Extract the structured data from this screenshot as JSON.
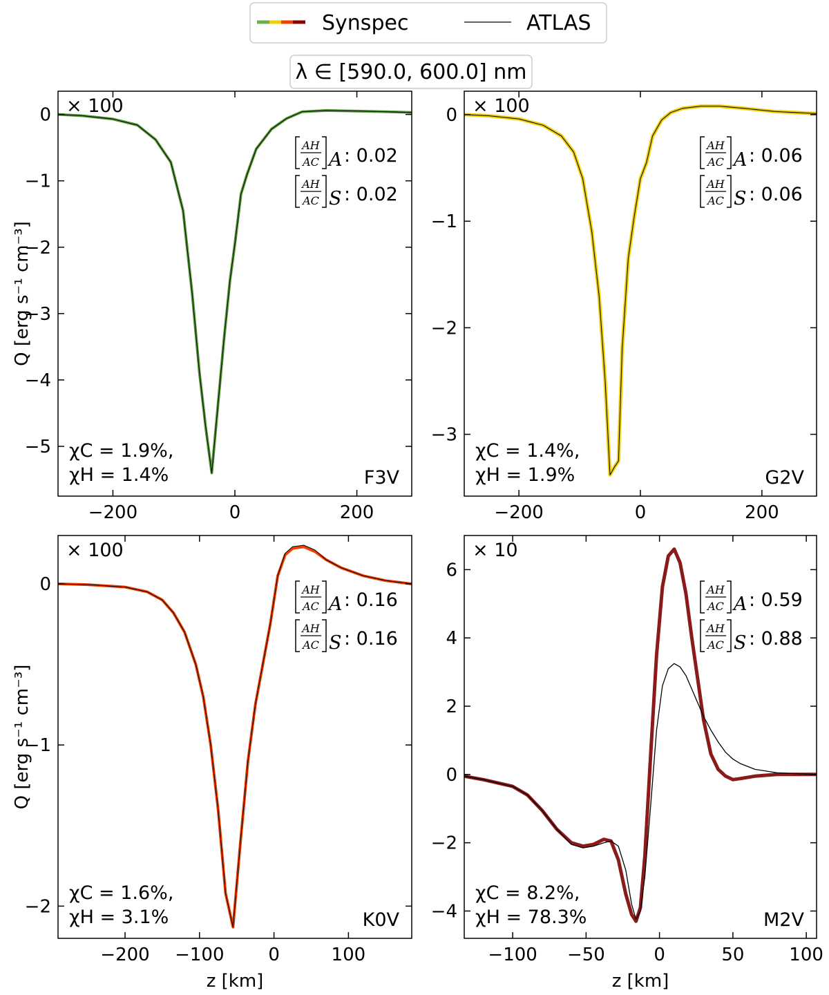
{
  "legend": {
    "synspec_label": "Synspec",
    "atlas_label": "ATLAS",
    "synspec_colors": [
      "#6ab04c",
      "#f0d000",
      "#f04000",
      "#8b0000"
    ],
    "atlas_color": "#000000"
  },
  "wavelength_box": "λ ∈ [590.0, 600.0] nm",
  "chart_data": [
    {
      "type": "line",
      "star": "F3V",
      "scale_label": "× 100",
      "xlabel": "",
      "ylabel": "Q [erg s⁻¹ cm⁻³]",
      "xlim": [
        -290,
        290
      ],
      "ylim": [
        -5.75,
        0.35
      ],
      "xticks": [
        -200,
        0,
        200
      ],
      "xtick_labels": [
        "−200",
        "0",
        "200"
      ],
      "yticks": [
        0,
        -1,
        -2,
        -3,
        -4,
        -5
      ],
      "ytick_labels": [
        "0",
        "−1",
        "−2",
        "−3",
        "−4",
        "−5"
      ],
      "ratio_A": "0.02",
      "ratio_S": "0.02",
      "chi_C": "χC = 1.9%,",
      "chi_H": "χH = 1.4%",
      "series": [
        {
          "name": "Synspec",
          "color": "#5a9e3c",
          "width": 4,
          "x": [
            -290,
            -250,
            -200,
            -160,
            -130,
            -105,
            -85,
            -70,
            -58,
            -48,
            -38,
            -28,
            -18,
            -8,
            0,
            10,
            20,
            35,
            60,
            85,
            110,
            150,
            200,
            250,
            290
          ],
          "y": [
            0.0,
            -0.02,
            -0.07,
            -0.16,
            -0.38,
            -0.72,
            -1.45,
            -2.7,
            -3.9,
            -4.7,
            -5.4,
            -4.4,
            -3.4,
            -2.5,
            -1.95,
            -1.2,
            -0.9,
            -0.52,
            -0.22,
            -0.06,
            0.04,
            0.06,
            0.05,
            0.04,
            0.03
          ]
        },
        {
          "name": "ATLAS",
          "color": "#000000",
          "width": 1,
          "x": [
            -290,
            -250,
            -200,
            -160,
            -130,
            -105,
            -85,
            -70,
            -58,
            -48,
            -38,
            -28,
            -18,
            -8,
            0,
            10,
            20,
            35,
            60,
            85,
            110,
            150,
            200,
            250,
            290
          ],
          "y": [
            0.0,
            -0.02,
            -0.07,
            -0.16,
            -0.38,
            -0.72,
            -1.45,
            -2.7,
            -3.9,
            -4.7,
            -5.4,
            -4.4,
            -3.4,
            -2.5,
            -1.95,
            -1.2,
            -0.9,
            -0.52,
            -0.22,
            -0.06,
            0.04,
            0.06,
            0.05,
            0.04,
            0.03
          ]
        }
      ]
    },
    {
      "type": "line",
      "star": "G2V",
      "scale_label": "× 100",
      "xlabel": "",
      "ylabel": "",
      "xlim": [
        -290,
        290
      ],
      "ylim": [
        -3.58,
        0.22
      ],
      "xticks": [
        -200,
        0,
        200
      ],
      "xtick_labels": [
        "−200",
        "0",
        "200"
      ],
      "yticks": [
        0,
        -1,
        -2,
        -3
      ],
      "ytick_labels": [
        "0",
        "−1",
        "−2",
        "−3"
      ],
      "ratio_A": "0.06",
      "ratio_S": "0.06",
      "chi_C": "χC = 1.4%,",
      "chi_H": "χH = 1.9%",
      "series": [
        {
          "name": "Synspec",
          "color": "#f0d000",
          "width": 5,
          "x": [
            -290,
            -250,
            -200,
            -160,
            -130,
            -110,
            -95,
            -80,
            -68,
            -58,
            -50,
            -42,
            -36,
            -30,
            -20,
            -10,
            0,
            10,
            20,
            35,
            50,
            70,
            100,
            130,
            170,
            220,
            290
          ],
          "y": [
            0.0,
            -0.01,
            -0.04,
            -0.1,
            -0.2,
            -0.35,
            -0.6,
            -1.1,
            -1.7,
            -2.5,
            -3.38,
            -3.3,
            -3.25,
            -2.2,
            -1.35,
            -0.95,
            -0.6,
            -0.45,
            -0.2,
            -0.05,
            0.02,
            0.06,
            0.08,
            0.08,
            0.06,
            0.03,
            0.01
          ]
        },
        {
          "name": "ATLAS",
          "color": "#000000",
          "width": 1,
          "x": [
            -290,
            -250,
            -200,
            -160,
            -130,
            -110,
            -95,
            -80,
            -68,
            -58,
            -50,
            -42,
            -36,
            -30,
            -20,
            -10,
            0,
            10,
            20,
            35,
            50,
            70,
            100,
            130,
            170,
            220,
            290
          ],
          "y": [
            0.0,
            -0.01,
            -0.04,
            -0.1,
            -0.2,
            -0.35,
            -0.6,
            -1.1,
            -1.7,
            -2.5,
            -3.38,
            -3.3,
            -3.25,
            -2.2,
            -1.35,
            -0.95,
            -0.6,
            -0.45,
            -0.2,
            -0.05,
            0.02,
            0.06,
            0.08,
            0.08,
            0.06,
            0.03,
            0.01
          ]
        }
      ]
    },
    {
      "type": "line",
      "star": "K0V",
      "scale_label": "× 100",
      "xlabel": "z [km]",
      "ylabel": "Q [erg s⁻¹ cm⁻³]",
      "xlim": [
        -290,
        185
      ],
      "ylim": [
        -2.2,
        0.3
      ],
      "xticks": [
        -200,
        -100,
        0,
        100
      ],
      "xtick_labels": [
        "−200",
        "−100",
        "0",
        "100"
      ],
      "yticks": [
        0,
        -1,
        -2
      ],
      "ytick_labels": [
        "0",
        "−1",
        "−2"
      ],
      "ratio_A": "0.16",
      "ratio_S": "0.16",
      "chi_C": "χC = 1.6%,",
      "chi_H": "χH = 3.1%",
      "series": [
        {
          "name": "Synspec",
          "color": "#f04000",
          "width": 4,
          "x": [
            -290,
            -250,
            -200,
            -170,
            -150,
            -135,
            -120,
            -105,
            -95,
            -85,
            -75,
            -65,
            -55,
            -45,
            -35,
            -25,
            -15,
            -5,
            5,
            15,
            25,
            40,
            55,
            70,
            90,
            120,
            150,
            185
          ],
          "y": [
            0.0,
            -0.005,
            -0.02,
            -0.05,
            -0.1,
            -0.18,
            -0.3,
            -0.5,
            -0.7,
            -1.0,
            -1.4,
            -1.92,
            -2.13,
            -1.6,
            -1.1,
            -0.75,
            -0.5,
            -0.25,
            0.05,
            0.18,
            0.22,
            0.23,
            0.2,
            0.15,
            0.1,
            0.05,
            0.02,
            0.0
          ]
        },
        {
          "name": "ATLAS",
          "color": "#000000",
          "width": 1,
          "x": [
            -290,
            -250,
            -200,
            -170,
            -150,
            -135,
            -120,
            -105,
            -95,
            -85,
            -75,
            -65,
            -55,
            -45,
            -35,
            -25,
            -15,
            -5,
            5,
            15,
            25,
            40,
            55,
            70,
            90,
            120,
            150,
            185
          ],
          "y": [
            0.0,
            -0.005,
            -0.02,
            -0.05,
            -0.1,
            -0.18,
            -0.3,
            -0.5,
            -0.7,
            -1.0,
            -1.4,
            -1.92,
            -2.13,
            -1.6,
            -1.1,
            -0.75,
            -0.5,
            -0.25,
            0.05,
            0.19,
            0.23,
            0.24,
            0.21,
            0.15,
            0.1,
            0.05,
            0.02,
            0.0
          ]
        }
      ]
    },
    {
      "type": "line",
      "star": "M2V",
      "scale_label": "× 10",
      "xlabel": "z [km]",
      "ylabel": "",
      "xlim": [
        -133,
        107
      ],
      "ylim": [
        -4.8,
        7.0
      ],
      "xticks": [
        -100,
        -50,
        0,
        50,
        100
      ],
      "xtick_labels": [
        "−100",
        "−50",
        "0",
        "50",
        "100"
      ],
      "yticks": [
        6,
        4,
        2,
        0,
        -2,
        -4
      ],
      "ytick_labels": [
        "6",
        "4",
        "2",
        "0",
        "−2",
        "−4"
      ],
      "ratio_A": "0.59",
      "ratio_S": "0.88",
      "chi_C": "χC = 8.2%,",
      "chi_H": "χH = 78.3%",
      "series": [
        {
          "name": "Synspec",
          "color": "#8b1a1a",
          "width": 5,
          "x": [
            -133,
            -120,
            -110,
            -100,
            -90,
            -80,
            -70,
            -60,
            -52,
            -45,
            -38,
            -33,
            -28,
            -23,
            -19,
            -16,
            -13,
            -10,
            -6,
            -2,
            2,
            6,
            10,
            14,
            18,
            22,
            26,
            30,
            35,
            40,
            45,
            50,
            55,
            65,
            80,
            95,
            107
          ],
          "y": [
            -0.05,
            -0.15,
            -0.25,
            -0.35,
            -0.6,
            -1.05,
            -1.6,
            -2.0,
            -2.1,
            -2.05,
            -1.9,
            -1.95,
            -2.5,
            -3.5,
            -4.1,
            -4.3,
            -3.9,
            -2.4,
            0.6,
            3.5,
            5.5,
            6.4,
            6.6,
            6.2,
            5.3,
            4.0,
            2.8,
            1.6,
            0.6,
            0.15,
            -0.05,
            -0.15,
            -0.12,
            -0.05,
            0.0,
            0.0,
            0.0
          ]
        },
        {
          "name": "ATLAS",
          "color": "#000000",
          "width": 1.3,
          "x": [
            -133,
            -120,
            -110,
            -100,
            -90,
            -80,
            -70,
            -60,
            -52,
            -45,
            -38,
            -33,
            -28,
            -23,
            -19,
            -16,
            -13,
            -10,
            -6,
            -2,
            2,
            6,
            10,
            14,
            18,
            22,
            26,
            30,
            35,
            40,
            45,
            50,
            55,
            65,
            80,
            95,
            107
          ],
          "y": [
            -0.05,
            -0.15,
            -0.25,
            -0.35,
            -0.6,
            -1.05,
            -1.6,
            -2.05,
            -2.15,
            -2.1,
            -2.0,
            -1.95,
            -2.1,
            -2.8,
            -3.8,
            -4.25,
            -4.0,
            -3.0,
            -0.9,
            1.3,
            2.6,
            3.1,
            3.25,
            3.15,
            2.9,
            2.5,
            2.1,
            1.7,
            1.3,
            0.95,
            0.65,
            0.45,
            0.32,
            0.15,
            0.05,
            0.02,
            0.0
          ]
        }
      ]
    }
  ]
}
